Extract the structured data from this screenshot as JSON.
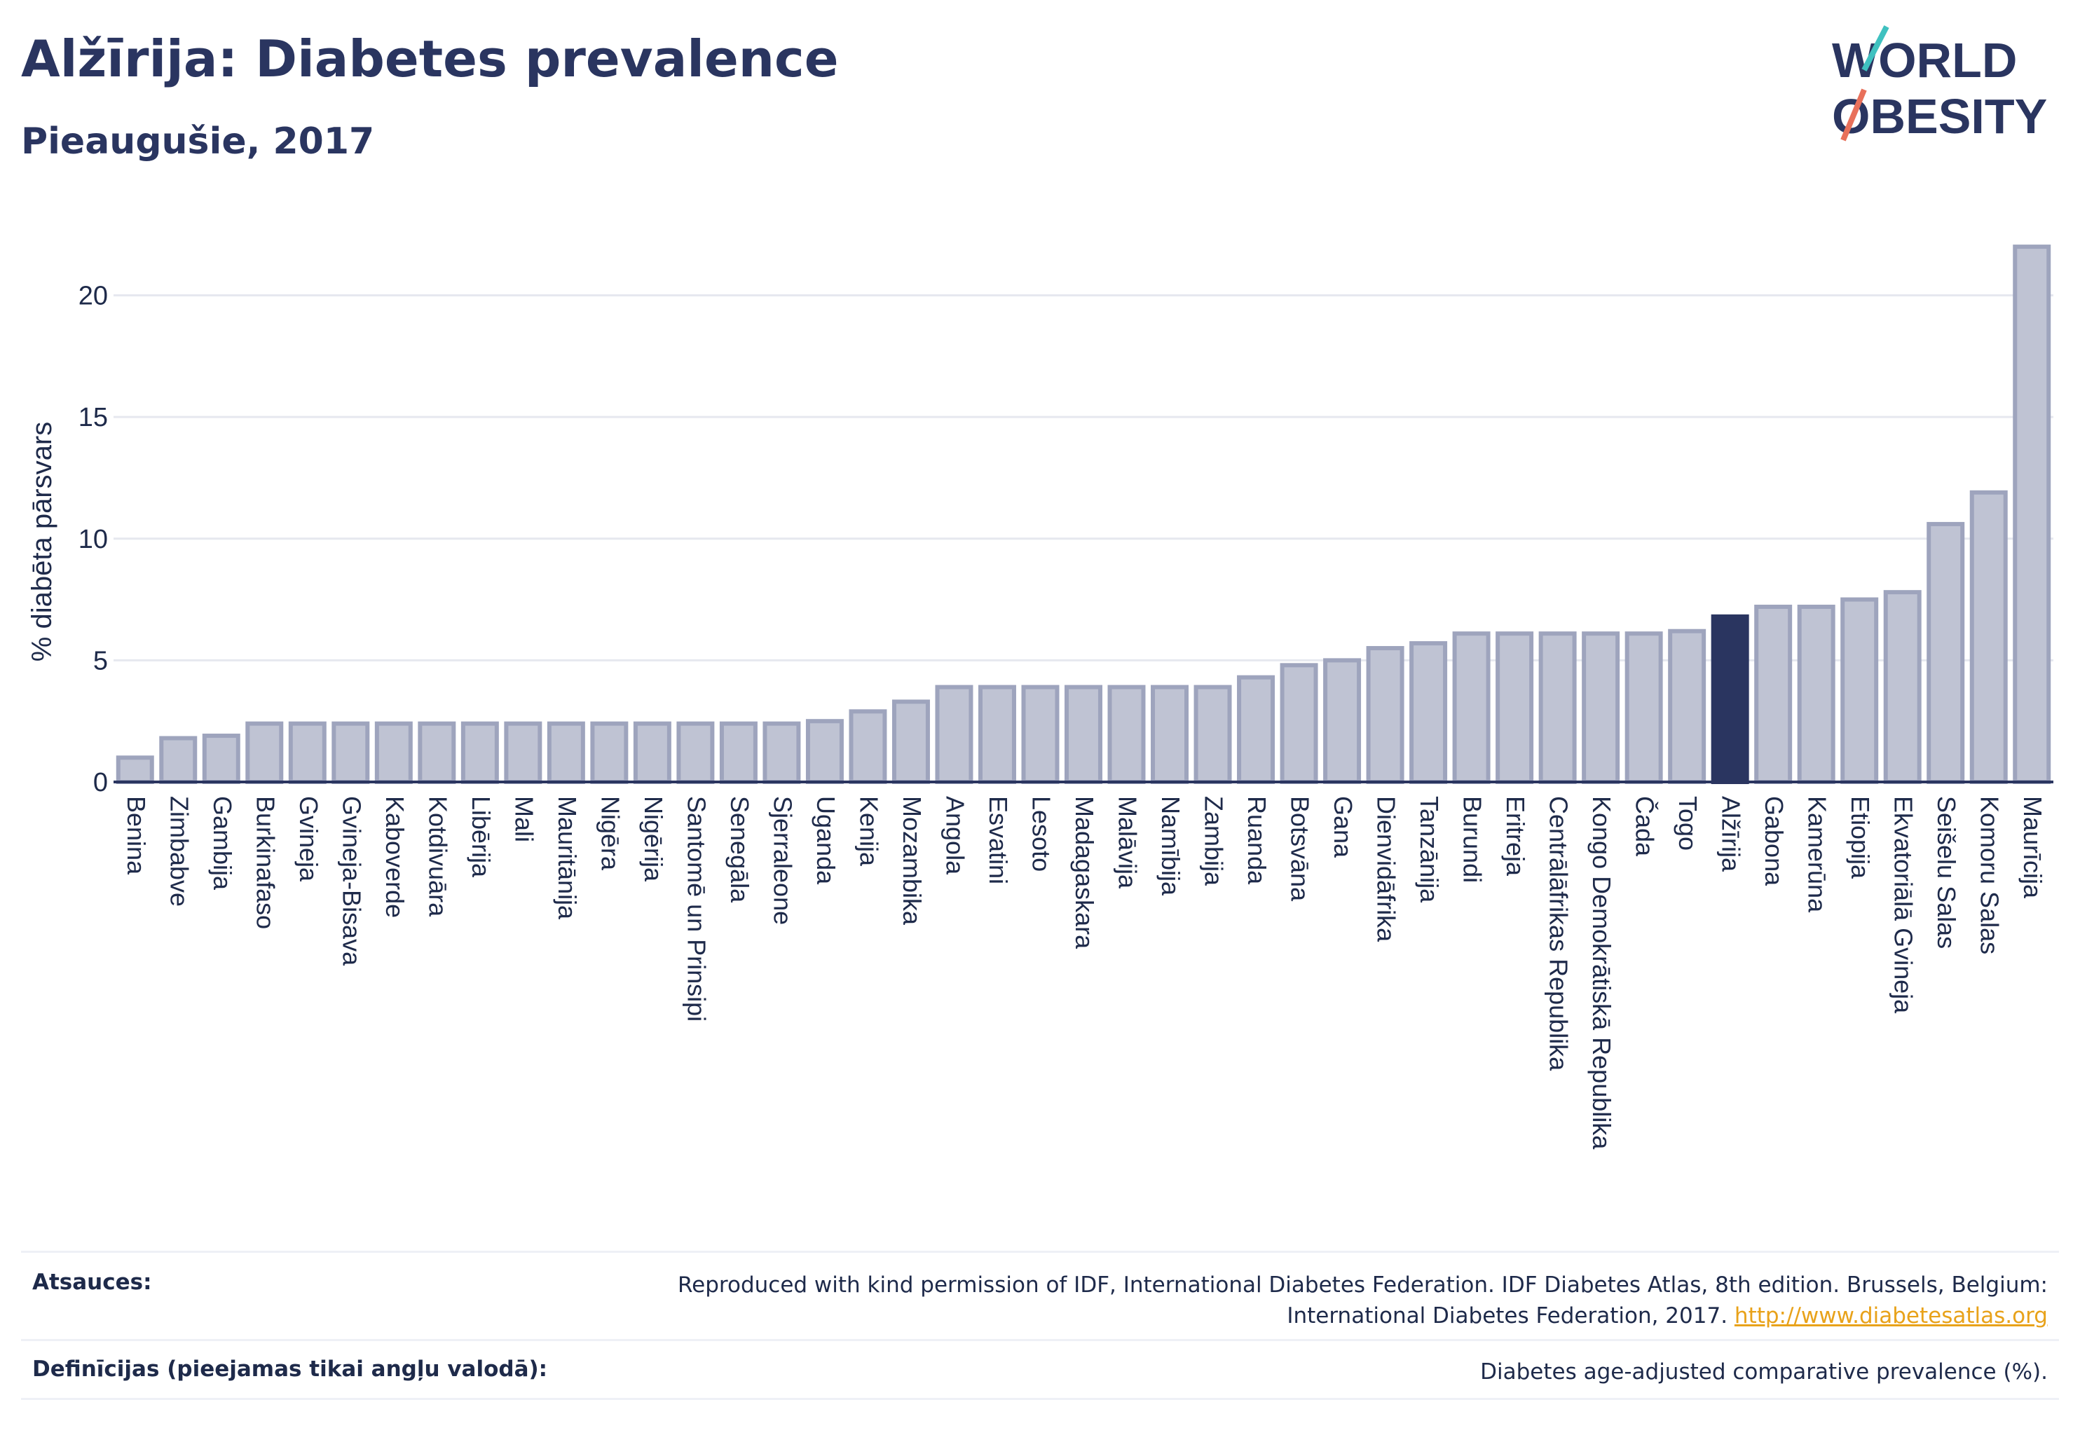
{
  "header": {
    "title": "Alžīrija: Diabetes prevalence",
    "subtitle": "Pieaugušie, 2017"
  },
  "logo": {
    "line1": "WORLD",
    "line2": "OBESITY"
  },
  "chart_data": {
    "type": "bar",
    "categories": [
      "Benina",
      "Zimbabve",
      "Gambija",
      "Burkinafaso",
      "Gvineja",
      "Gvineja-Bisava",
      "Kaboverde",
      "Kotdivuāra",
      "Libērija",
      "Mali",
      "Mauritānija",
      "Nigēra",
      "Nigērija",
      "Santomē un Prinsipi",
      "Senegāla",
      "Sjerraleone",
      "Uganda",
      "Kenija",
      "Mozambika",
      "Angola",
      "Esvatini",
      "Lesoto",
      "Madagaskara",
      "Malāvija",
      "Namībija",
      "Zambija",
      "Ruanda",
      "Botsvāna",
      "Gana",
      "Dienvidāfrika",
      "Tanzānija",
      "Burundi",
      "Eritreja",
      "Centrālāfrikas Republika",
      "Kongo Demokrātiskā Republika",
      "Čada",
      "Togo",
      "Alžīrija",
      "Gabona",
      "Kamerūna",
      "Etiopija",
      "Ekvatoriālā Gvineja",
      "Seišelu Salas",
      "Komoru Salas",
      "Maurīcija"
    ],
    "values": [
      1.0,
      1.8,
      1.9,
      2.4,
      2.4,
      2.4,
      2.4,
      2.4,
      2.4,
      2.4,
      2.4,
      2.4,
      2.4,
      2.4,
      2.4,
      2.4,
      2.5,
      2.9,
      3.3,
      3.9,
      3.9,
      3.9,
      3.9,
      3.9,
      3.9,
      3.9,
      4.3,
      4.8,
      5.0,
      5.5,
      5.7,
      6.1,
      6.1,
      6.1,
      6.1,
      6.1,
      6.2,
      6.8,
      7.2,
      7.2,
      7.5,
      7.8,
      10.6,
      11.9,
      22.0
    ],
    "highlight": "Alžīrija",
    "ylabel": "% diabēta pārsvars",
    "xlabel": "",
    "ylim": [
      0,
      23.5
    ],
    "yticks": [
      0,
      5,
      10,
      15,
      20
    ],
    "grid": true,
    "colors": {
      "bar": "#bfc3d3",
      "bar_edge": "#9ea4bd",
      "highlight": "#2a3560",
      "grid": "#e6e8ef",
      "axis": "#2a3560"
    }
  },
  "footer": {
    "sources_label": "Atsauces:",
    "sources_text": "Reproduced with kind permission of IDF, International Diabetes Federation. IDF Diabetes Atlas, 8th edition. Brussels, Belgium:",
    "sources_text2": "International Diabetes Federation, 2017.",
    "sources_link": "http://www.diabetesatlas.org",
    "definitions_label": "Definīcijas (pieejamas tikai angļu valodā):",
    "definitions_text": "Diabetes age-adjusted comparative prevalence (%)."
  }
}
